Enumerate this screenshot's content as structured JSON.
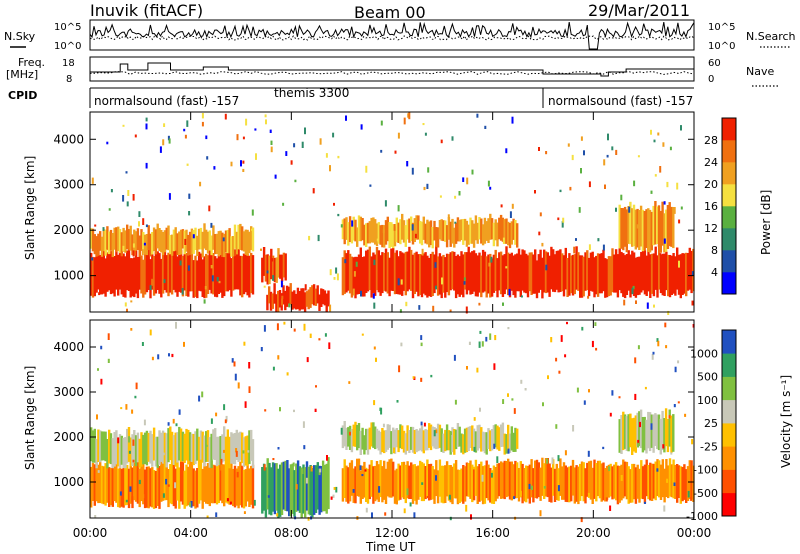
{
  "header": {
    "radar": "Inuvik (fitACF)",
    "beam": "Beam 00",
    "date": "29/Mar/2011"
  },
  "noise_panel": {
    "left_label": "N.Sky",
    "right_label": "N.Search",
    "left_ticks": [
      "10^5",
      "10^0"
    ],
    "right_ticks": [
      "10^5",
      "10^0"
    ]
  },
  "freq_panel": {
    "left_label_1": "Freq.",
    "left_label_2": "[MHz]",
    "right_label": "Nave",
    "left_ticks": [
      "18",
      "8"
    ],
    "right_ticks": [
      "60",
      "0"
    ]
  },
  "cpid_panel": {
    "label": "CPID",
    "segments": [
      {
        "text": "normalsound (fast) -157",
        "start_hour": 0
      },
      {
        "text": "themis 3300",
        "start_hour": 7
      },
      {
        "text": "normalsound (fast) -157",
        "start_hour": 18
      }
    ]
  },
  "xaxis": {
    "label": "Time UT",
    "ticks": [
      "00:00",
      "04:00",
      "08:00",
      "12:00",
      "16:00",
      "20:00",
      "00:00"
    ]
  },
  "colors": {
    "power": [
      "#0000ff",
      "#1f4fa8",
      "#2f8a6a",
      "#5ab040",
      "#f5e040",
      "#f0a020",
      "#f07010",
      "#f02000"
    ],
    "velocity": [
      "#ff0000",
      "#ff5000",
      "#ff9000",
      "#ffc000",
      "#c8c8b8",
      "#80c040",
      "#30a060",
      "#2050c0"
    ]
  },
  "chart_data": [
    {
      "type": "heatmap",
      "panel": "power",
      "ylabel": "Slant Range [km]",
      "xlabel": "",
      "x_range_hours": [
        0,
        24
      ],
      "yticks": [
        "1000",
        "2000",
        "3000",
        "4000"
      ],
      "ylim": [
        200,
        4600
      ],
      "colorbar_label": "Power [dB]",
      "colorbar_ticks": [
        "28",
        "24",
        "20",
        "16",
        "12",
        "8",
        "4"
      ],
      "bands": [
        {
          "t0": 0,
          "t1": 6.5,
          "r0": 600,
          "r1": 1500,
          "level": 7
        },
        {
          "t0": 0,
          "t1": 6.5,
          "r0": 1500,
          "r1": 2000,
          "level": 5
        },
        {
          "t0": 6.8,
          "t1": 7.8,
          "r0": 900,
          "r1": 1500,
          "level": 6
        },
        {
          "t0": 7.0,
          "t1": 9.5,
          "r0": 300,
          "r1": 700,
          "level": 7
        },
        {
          "t0": 10,
          "t1": 20,
          "r0": 600,
          "r1": 1500,
          "level": 7
        },
        {
          "t0": 10,
          "t1": 17,
          "r0": 1700,
          "r1": 2200,
          "level": 5
        },
        {
          "t0": 20,
          "t1": 24,
          "r0": 600,
          "r1": 1500,
          "level": 7
        },
        {
          "t0": 21,
          "t1": 23.2,
          "r0": 1600,
          "r1": 2500,
          "level": 5
        }
      ]
    },
    {
      "type": "heatmap",
      "panel": "velocity",
      "ylabel": "Slant Range [km]",
      "xlabel": "Time UT",
      "x_range_hours": [
        0,
        24
      ],
      "yticks": [
        "1000",
        "2000",
        "3000",
        "4000"
      ],
      "ylim": [
        200,
        4600
      ],
      "colorbar_label": "Velocity [m s⁻¹]",
      "colorbar_ticks": [
        "1000",
        "500",
        "100",
        "25",
        "-25",
        "-100",
        "-500",
        "-1000"
      ],
      "bands": [
        {
          "t0": 0,
          "t1": 6.5,
          "r0": 500,
          "r1": 1400,
          "level": 2
        },
        {
          "t0": 0,
          "t1": 6.5,
          "r0": 1400,
          "r1": 2100,
          "level": 4
        },
        {
          "t0": 6.8,
          "t1": 9.5,
          "r0": 300,
          "r1": 1400,
          "level": 6
        },
        {
          "t0": 10,
          "t1": 20,
          "r0": 600,
          "r1": 1400,
          "level": 2
        },
        {
          "t0": 10,
          "t1": 17,
          "r0": 1700,
          "r1": 2200,
          "level": 4
        },
        {
          "t0": 20,
          "t1": 24,
          "r0": 600,
          "r1": 1400,
          "level": 2
        },
        {
          "t0": 21,
          "t1": 23.2,
          "r0": 1700,
          "r1": 2500,
          "level": 4
        }
      ]
    }
  ]
}
